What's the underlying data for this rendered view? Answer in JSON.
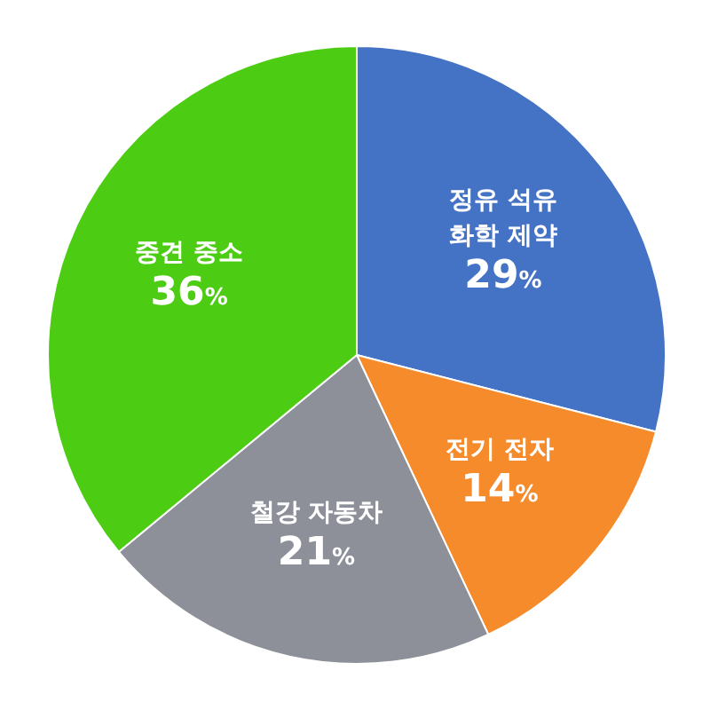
{
  "chart_data": {
    "type": "pie",
    "categories": [
      "정유 석유 화학 제약",
      "전기 전자",
      "철강 자동차",
      "중견 중소"
    ],
    "values": [
      29,
      14,
      21,
      36
    ],
    "colors": [
      "#4472c4",
      "#f68b2c",
      "#8d9099",
      "#4ccc12"
    ],
    "value_labels": [
      "29%",
      "14%",
      "21%",
      "36%"
    ]
  }
}
